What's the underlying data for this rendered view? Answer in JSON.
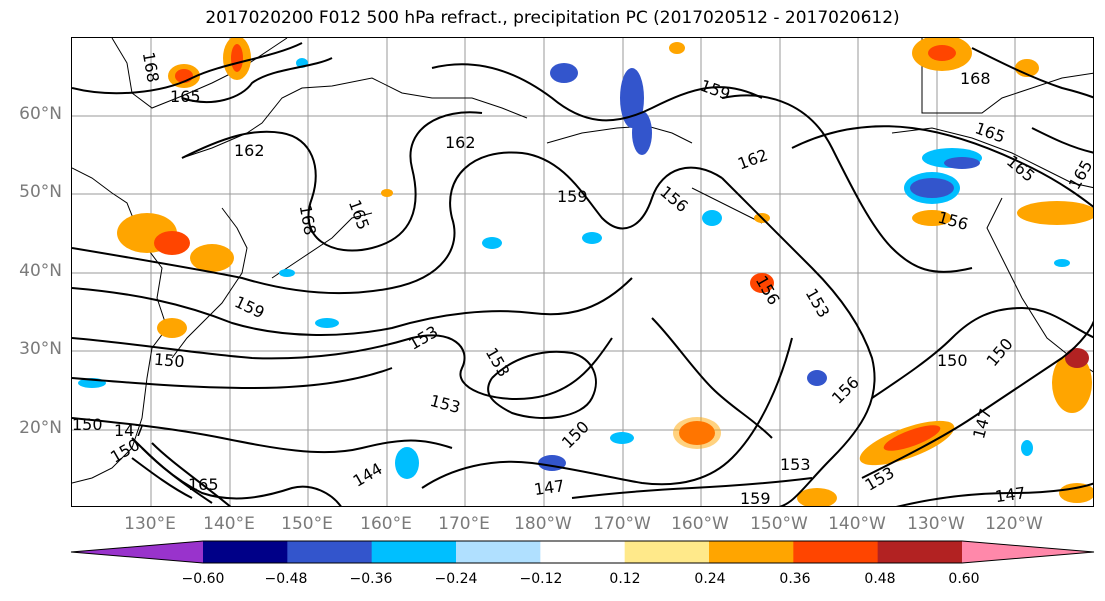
{
  "title": "2017020200 F012 500 hPa refract., precipitation PC (2017020512 - 2017020612)",
  "lat_labels": [
    "60°N",
    "50°N",
    "40°N",
    "30°N",
    "20°N"
  ],
  "lon_labels": [
    "130°E",
    "140°E",
    "150°E",
    "160°E",
    "170°E",
    "180°W",
    "170°W",
    "160°W",
    "150°W",
    "140°W",
    "130°W",
    "120°W"
  ],
  "contour_labels": [
    "168",
    "165",
    "162",
    "162",
    "168",
    "165",
    "159",
    "159",
    "162",
    "156",
    "156",
    "168",
    "165",
    "165",
    "165",
    "156",
    "159",
    "153",
    "153",
    "153",
    "150",
    "150",
    "150",
    "147",
    "150",
    "153",
    "150",
    "156",
    "147",
    "144",
    "165",
    "147",
    "153",
    "159",
    "147",
    "153",
    "150"
  ],
  "colorbar": {
    "colors": [
      "#9933cc",
      "#000088",
      "#3355cc",
      "#00bfff",
      "#b0e0ff",
      "#ffffff",
      "#ffe98a",
      "#ffa500",
      "#ff4500",
      "#b22222",
      "#ff88aa"
    ],
    "ticks": [
      "−0.60",
      "−0.48",
      "−0.36",
      "−0.24",
      "−0.12",
      "0.12",
      "0.24",
      "0.36",
      "0.48",
      "0.60"
    ]
  }
}
